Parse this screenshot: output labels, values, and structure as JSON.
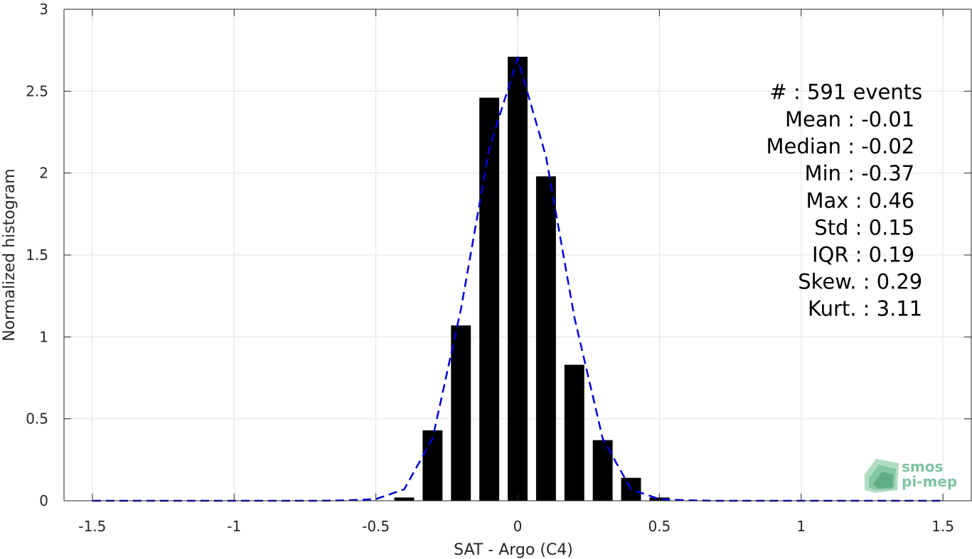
{
  "chart_data": {
    "type": "bar",
    "xlabel": "SAT - Argo (C4)",
    "ylabel": "Normalized histogram",
    "xlim": [
      -1.6,
      1.6
    ],
    "ylim": [
      0,
      3
    ],
    "x_ticks": [
      -1.5,
      -1,
      -0.5,
      0,
      0.5,
      1,
      1.5
    ],
    "x_tick_labels": [
      "-1.5",
      "-1",
      "-0.5",
      "0",
      "0.5",
      "1",
      "1.5"
    ],
    "y_ticks": [
      0,
      0.5,
      1,
      1.5,
      2,
      2.5,
      3
    ],
    "y_tick_labels": [
      "0",
      "0.5",
      "1",
      "1.5",
      "2",
      "2.5",
      "3"
    ],
    "grid": true,
    "bar_width": 0.07,
    "bars": {
      "x": [
        -0.4,
        -0.3,
        -0.2,
        -0.1,
        0.0,
        0.1,
        0.2,
        0.3,
        0.4,
        0.5
      ],
      "values": [
        0.02,
        0.43,
        1.07,
        2.46,
        2.71,
        1.98,
        0.83,
        0.37,
        0.14,
        0.02
      ],
      "color": "#000000"
    },
    "fit_line": {
      "style": "dashed",
      "color": "#0000dd",
      "x": [
        -1.5,
        -1.4,
        -1.3,
        -1.2,
        -1.1,
        -1.0,
        -0.9,
        -0.8,
        -0.7,
        -0.6,
        -0.5,
        -0.4,
        -0.3,
        -0.2,
        -0.1,
        0.0,
        0.1,
        0.2,
        0.3,
        0.4,
        0.5,
        0.6,
        0.7,
        0.8,
        0.9,
        1.0,
        1.1,
        1.2,
        1.3,
        1.4,
        1.5
      ],
      "y": [
        0,
        0,
        0,
        0,
        0,
        0,
        0,
        0,
        0,
        0.003,
        0.01,
        0.07,
        0.38,
        1.17,
        2.15,
        2.7,
        2.1,
        1.12,
        0.38,
        0.07,
        0.01,
        0.003,
        0,
        0,
        0,
        0,
        0,
        0,
        0,
        0,
        0
      ]
    },
    "stats": [
      {
        "text": "#  : 591 events",
        "x": -0.3,
        "y": 2.451
      },
      {
        "text": "Mean : -0.01",
        "x": -0.2,
        "y": 2.285
      },
      {
        "text": "Median : -0.02",
        "x": -0.2,
        "y": 2.12
      },
      {
        "text": "Min : -0.37",
        "x": -0.2,
        "y": 1.955
      },
      {
        "text": "Max : 0.46",
        "x": -0.2,
        "y": 1.788
      },
      {
        "text": "Std : 0.15",
        "x": -0.2,
        "y": 1.623
      },
      {
        "text": "IQR : 0.19",
        "x": -0.2,
        "y": 1.459
      },
      {
        "text": "Skew. : 0.29",
        "x": -0.3,
        "y": 1.294
      },
      {
        "text": "Kurt. : 3.11",
        "x": -0.3,
        "y": 1.129
      }
    ]
  },
  "logo": {
    "line1": "smos",
    "line2": "pi-mep",
    "color": "#7fc4a0"
  }
}
